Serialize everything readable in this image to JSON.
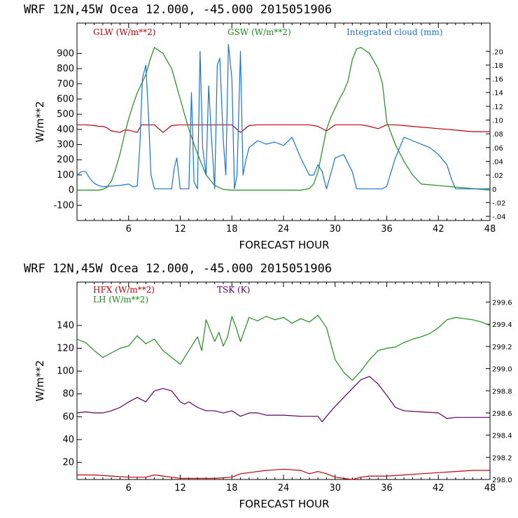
{
  "page": {
    "header_top": "WRF  12N,45W Ocea  12.000, -45.000  2015051906",
    "header_bottom": "WRF  12N,45W Ocea  12.000, -45.000  2015051906"
  },
  "chart_data": [
    {
      "type": "line",
      "xlabel": "FORECAST HOUR",
      "ylabel": "W/m**2",
      "xlim": [
        0,
        48
      ],
      "ylim": [
        -200,
        1100
      ],
      "xticks": [
        6,
        12,
        18,
        24,
        30,
        36,
        42,
        48
      ],
      "yticks": [
        -100,
        0,
        100,
        200,
        300,
        400,
        500,
        600,
        700,
        800,
        900
      ],
      "y2lim": [
        -0.046,
        0.241
      ],
      "y2ticks": [
        "-.04",
        "-.02",
        "0",
        ".02",
        ".04",
        ".06",
        ".08",
        ".10",
        ".12",
        ".14",
        ".16",
        ".18",
        ".20"
      ],
      "legend_placement": "top",
      "series": [
        {
          "name": "GLW (W/m**2)",
          "color": "#c0000a",
          "axis": "left",
          "x": [
            0,
            1,
            2,
            2.5,
            3,
            3.5,
            4,
            5,
            5.5,
            6,
            7,
            7.5,
            8,
            9,
            10,
            11,
            12,
            13,
            14,
            15,
            16,
            17,
            18,
            19,
            20,
            21,
            22,
            23,
            24,
            25,
            26,
            27,
            28,
            29,
            30,
            31,
            32,
            33,
            34,
            35,
            36,
            37,
            38,
            39,
            40,
            41,
            42,
            43,
            44,
            45,
            46,
            47,
            48
          ],
          "y": [
            430,
            430,
            425,
            420,
            420,
            410,
            390,
            380,
            395,
            395,
            380,
            430,
            430,
            430,
            380,
            425,
            430,
            430,
            430,
            430,
            430,
            430,
            430,
            380,
            425,
            430,
            430,
            430,
            430,
            430,
            430,
            430,
            420,
            390,
            430,
            430,
            430,
            430,
            420,
            405,
            430,
            430,
            425,
            420,
            415,
            410,
            405,
            400,
            395,
            390,
            385,
            385,
            385
          ]
        },
        {
          "name": "GSW (W/m**2)",
          "color": "#1e8c1e",
          "axis": "left",
          "x": [
            0,
            2.5,
            3,
            3.5,
            4,
            4.5,
            5,
            5.5,
            6,
            6.5,
            7,
            7.5,
            8,
            8.5,
            9,
            10,
            11,
            11.5,
            12,
            12.5,
            13,
            14,
            15,
            16,
            17,
            18,
            20,
            22,
            24,
            26,
            27,
            27.5,
            28,
            28.5,
            29,
            29.5,
            30,
            30.5,
            31,
            31.5,
            32,
            32.5,
            33,
            34,
            35,
            35.5,
            36,
            37,
            38,
            39,
            40,
            48
          ],
          "y": [
            0,
            0,
            5,
            20,
            60,
            140,
            240,
            360,
            470,
            560,
            640,
            700,
            760,
            860,
            940,
            900,
            800,
            700,
            600,
            500,
            400,
            240,
            100,
            30,
            5,
            0,
            0,
            0,
            0,
            0,
            10,
            40,
            120,
            260,
            400,
            480,
            540,
            600,
            650,
            720,
            860,
            930,
            940,
            900,
            800,
            700,
            450,
            300,
            190,
            100,
            40,
            0
          ]
        },
        {
          "name": "Integrated cloud (mm)",
          "color": "#1a73d4",
          "axis": "right",
          "x": [
            0,
            0.5,
            1,
            1.5,
            2,
            2.5,
            3,
            4,
            5,
            6,
            6.5,
            7,
            7.3,
            7.6,
            8,
            8.3,
            8.6,
            9,
            10,
            11,
            11.3,
            11.6,
            12,
            13,
            13.3,
            13.6,
            14,
            14.3,
            14.6,
            15,
            15.3,
            15.6,
            16,
            16.3,
            16.6,
            17,
            17.3,
            17.6,
            18,
            18.3,
            18.6,
            19,
            19.3,
            19.6,
            20,
            21,
            22,
            23,
            24,
            25,
            25.5,
            26,
            27,
            27.5,
            28,
            28.5,
            29,
            30,
            31,
            32,
            32.5,
            33,
            34,
            35,
            35.5,
            36,
            37,
            38,
            39,
            40,
            41,
            42,
            43,
            43.5,
            44,
            48
          ],
          "y": [
            0.02,
            0.025,
            0.025,
            0.015,
            0.008,
            0.005,
            0.003,
            0.004,
            0.005,
            0.007,
            0.003,
            0.004,
            0.06,
            0.16,
            0.18,
            0.11,
            0.02,
            0.0,
            0.0,
            0.0,
            0.03,
            0.045,
            0.0,
            0.0,
            0.14,
            0.01,
            0.0,
            0.2,
            0.06,
            0.02,
            0.15,
            0.08,
            0.0,
            0.18,
            0.19,
            0.07,
            0.02,
            0.21,
            0.16,
            0.0,
            0.02,
            0.2,
            0.02,
            0.04,
            0.06,
            0.07,
            0.065,
            0.068,
            0.063,
            0.075,
            0.06,
            0.045,
            0.02,
            0.02,
            0.035,
            0.025,
            0.0,
            0.045,
            0.05,
            0.025,
            0.0,
            0.0,
            0.0,
            0.0,
            0.0,
            0.004,
            0.045,
            0.075,
            0.07,
            0.065,
            0.06,
            0.05,
            0.035,
            0.015,
            0.0,
            0.0
          ]
        }
      ]
    },
    {
      "type": "line",
      "xlabel": "FORECAST HOUR",
      "ylabel": "W/m**2",
      "xlim": [
        0,
        48
      ],
      "ylim": [
        5,
        178
      ],
      "xticks": [
        6,
        12,
        18,
        24,
        30,
        36,
        42,
        48
      ],
      "yticks": [
        20,
        40,
        60,
        80,
        100,
        120,
        140
      ],
      "y2lim": [
        298.0,
        299.78
      ],
      "y2ticks": [
        "298.0",
        "298.2",
        "298.4",
        "298.6",
        "298.8",
        "299.0",
        "299.2",
        "299.4",
        "299.6"
      ],
      "legend_placement": "top",
      "series": [
        {
          "name": "HFX (W/m**2)",
          "color": "#c0000a",
          "axis": "left",
          "x": [
            0,
            2,
            4,
            6,
            8,
            9,
            10,
            12,
            14,
            16,
            18,
            19,
            20,
            22,
            24,
            26,
            27,
            28,
            29,
            30,
            31,
            32,
            33,
            34,
            36,
            38,
            40,
            42,
            44,
            46,
            48
          ],
          "y": [
            9,
            9,
            8,
            7,
            7,
            9,
            8,
            6,
            6,
            6,
            7,
            10,
            11,
            13,
            14,
            13,
            10,
            12,
            10,
            7,
            6,
            5,
            7,
            8,
            8,
            9,
            10,
            11,
            12,
            13,
            13
          ]
        },
        {
          "name": "LH (W/m**2)",
          "color": "#1e8c1e",
          "axis": "left",
          "x": [
            0,
            1,
            2,
            3,
            4,
            5,
            6,
            7,
            8,
            9,
            10,
            11,
            12,
            12.5,
            13,
            14,
            14.5,
            15,
            16,
            16.5,
            17,
            17.5,
            18,
            18.5,
            19,
            20,
            21,
            22,
            23,
            24,
            25,
            26,
            27,
            28,
            29,
            30,
            31,
            32,
            33,
            34,
            35,
            36,
            37,
            38,
            39,
            40,
            41,
            42,
            43,
            44,
            45,
            46,
            47,
            48
          ],
          "y": [
            128,
            125,
            118,
            112,
            116,
            120,
            122,
            131,
            124,
            128,
            118,
            112,
            106,
            112,
            118,
            130,
            118,
            145,
            126,
            134,
            122,
            130,
            148,
            138,
            126,
            147,
            144,
            148,
            145,
            147,
            142,
            146,
            143,
            149,
            138,
            110,
            99,
            92,
            100,
            110,
            118,
            120,
            121,
            125,
            128,
            130,
            133,
            138,
            145,
            147,
            146,
            145,
            143,
            140
          ]
        },
        {
          "name": "TSK (K)",
          "color": "#5c005c",
          "axis": "right",
          "x": [
            0,
            1,
            2,
            3,
            4,
            5,
            6,
            7,
            8,
            9,
            10,
            11,
            12,
            12.5,
            13,
            14,
            15,
            16,
            17,
            18,
            19,
            20,
            21,
            22,
            24,
            26,
            28,
            28.5,
            29,
            30,
            31,
            32,
            33,
            34,
            35,
            36,
            37,
            38,
            40,
            42,
            43,
            44,
            46,
            48
          ],
          "y": [
            298.6,
            298.61,
            298.6,
            298.6,
            298.62,
            298.65,
            298.7,
            298.74,
            298.7,
            298.8,
            298.82,
            298.8,
            298.7,
            298.68,
            298.7,
            298.65,
            298.62,
            298.62,
            298.6,
            298.62,
            298.57,
            298.6,
            298.6,
            298.58,
            298.58,
            298.57,
            298.57,
            298.52,
            298.57,
            298.66,
            298.74,
            298.82,
            298.9,
            298.93,
            298.86,
            298.76,
            298.65,
            298.62,
            298.61,
            298.6,
            298.55,
            298.56,
            298.56,
            298.56
          ]
        }
      ]
    }
  ]
}
